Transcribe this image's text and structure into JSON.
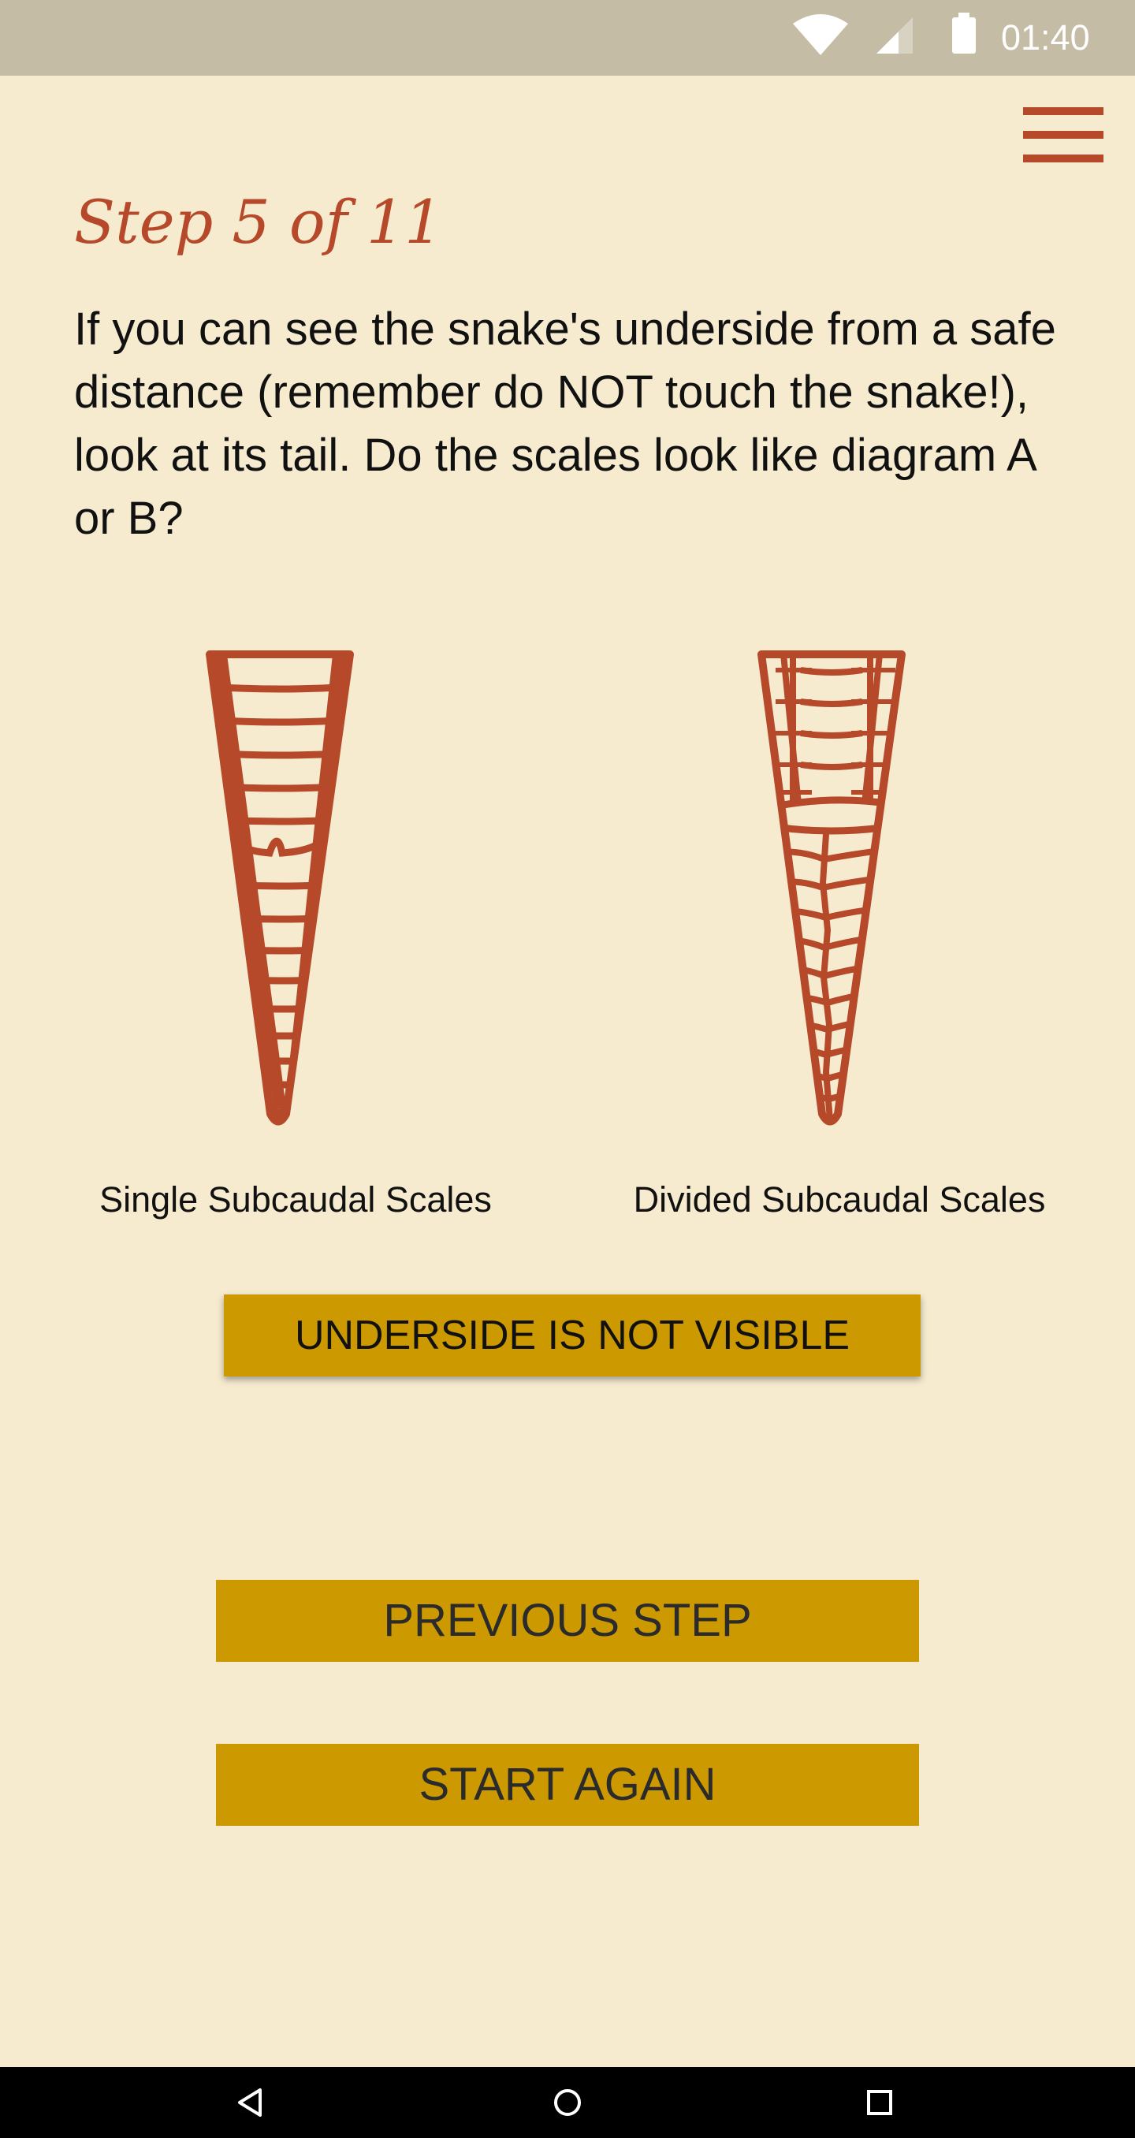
{
  "status_bar": {
    "time": "01:40",
    "icons": [
      "wifi-icon",
      "signal-icon",
      "battery-icon"
    ]
  },
  "header": {
    "menu_icon": "hamburger-menu-icon"
  },
  "step": {
    "title": "Step 5 of 11",
    "question": "If you can see the snake's underside from a safe distance (remember do NOT touch the snake!), look at its tail. Do the scales look like diagram A or B?"
  },
  "options": [
    {
      "caption": "Single Subcaudal Scales",
      "icon": "single-subcaudal-scales-diagram"
    },
    {
      "caption": "Divided Subcaudal Scales",
      "icon": "divided-subcaudal-scales-diagram"
    }
  ],
  "buttons": {
    "underside": "UNDERSIDE IS NOT VISIBLE",
    "previous": "PREVIOUS STEP",
    "start_again": "START AGAIN"
  },
  "nav_bar": {
    "icons": [
      "back-icon",
      "home-icon",
      "recents-icon"
    ]
  },
  "colors": {
    "background": "#f6ebcf",
    "accent": "#b5492a",
    "button": "#cc9900",
    "status_bar": "#c4bca5"
  }
}
